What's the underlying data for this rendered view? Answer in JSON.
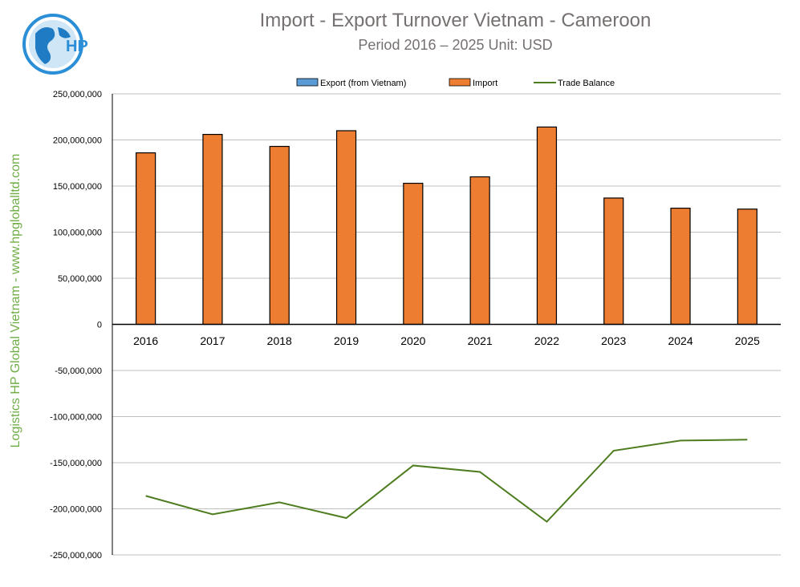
{
  "chart_data": {
    "type": "bar",
    "title": "Import - Export Turnover Vietnam - Cameroon",
    "subtitle": "Period 2016 – 2025  Unit: USD",
    "categories": [
      "2016",
      "2017",
      "2018",
      "2019",
      "2020",
      "2021",
      "2022",
      "2023",
      "2024",
      "2025"
    ],
    "series": [
      {
        "name": "Export (from Vietnam)",
        "kind": "bar",
        "color": "#5b9bd5",
        "values": [
          0,
          0,
          0,
          0,
          0,
          0,
          0,
          0,
          0,
          0
        ]
      },
      {
        "name": "Import",
        "kind": "bar",
        "color": "#ed7d31",
        "values": [
          186000000,
          206000000,
          193000000,
          210000000,
          153000000,
          160000000,
          214000000,
          137000000,
          126000000,
          125000000
        ]
      },
      {
        "name": "Trade Balance",
        "kind": "line",
        "color": "#4e7d1f",
        "values": [
          -186000000,
          -206000000,
          -193000000,
          -210000000,
          -153000000,
          -160000000,
          -214000000,
          -137000000,
          -126000000,
          -125000000
        ]
      }
    ],
    "ylim": [
      -250000000,
      250000000
    ],
    "yticks": [
      "250,000,000",
      "200,000,000",
      "150,000,000",
      "100,000,000",
      "50,000,000",
      "0",
      "-50,000,000",
      "-100,000,000",
      "-150,000,000",
      "-200,000,000",
      "-250,000,000"
    ],
    "grid": true,
    "legend": "top"
  },
  "side_text": "Logistics HP Global Vietnam - www.hpgloballtd.com",
  "logo_text": "HP"
}
